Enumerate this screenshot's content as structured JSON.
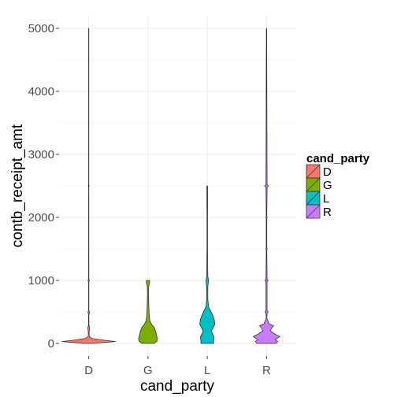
{
  "chart_data": {
    "type": "violin",
    "title": "",
    "xlabel": "cand_party",
    "ylabel": "contb_receipt_amt",
    "categories": [
      "D",
      "G",
      "L",
      "R"
    ],
    "ylim": [
      -200,
      5200
    ],
    "y_ticks": [
      0,
      1000,
      2000,
      3000,
      4000,
      5000
    ],
    "grid": true,
    "legend": {
      "title": "cand_party",
      "placement": "right",
      "entries": [
        "D",
        "G",
        "L",
        "R"
      ]
    },
    "colors": {
      "D": "#F8766D",
      "G": "#7CAE00",
      "L": "#00BFC4",
      "R": "#C77CFF"
    },
    "series": [
      {
        "name": "D",
        "min": 0,
        "max": 5000,
        "profile": [
          [
            0,
            0.2
          ],
          [
            15,
            0.55
          ],
          [
            30,
            1.0
          ],
          [
            50,
            0.6
          ],
          [
            80,
            0.12
          ],
          [
            110,
            0.02
          ],
          [
            150,
            0.015
          ],
          [
            200,
            0.02
          ],
          [
            250,
            0.035
          ],
          [
            280,
            0.01
          ],
          [
            450,
            0.005
          ],
          [
            500,
            0.03
          ],
          [
            520,
            0.005
          ],
          [
            980,
            0.005
          ],
          [
            1000,
            0.03
          ],
          [
            1020,
            0.005
          ],
          [
            2480,
            0.004
          ],
          [
            2500,
            0.012
          ],
          [
            2520,
            0.004
          ],
          [
            5000,
            0.004
          ]
        ]
      },
      {
        "name": "G",
        "min": 0,
        "max": 1000,
        "profile": [
          [
            0,
            0.22
          ],
          [
            30,
            0.33
          ],
          [
            80,
            0.35
          ],
          [
            130,
            0.32
          ],
          [
            200,
            0.28
          ],
          [
            260,
            0.22
          ],
          [
            300,
            0.14
          ],
          [
            360,
            0.07
          ],
          [
            450,
            0.045
          ],
          [
            600,
            0.03
          ],
          [
            800,
            0.02
          ],
          [
            900,
            0.025
          ],
          [
            960,
            0.06
          ],
          [
            1000,
            0.06
          ]
        ]
      },
      {
        "name": "L",
        "min": 0,
        "max": 2500,
        "profile": [
          [
            0,
            0.24
          ],
          [
            50,
            0.24
          ],
          [
            100,
            0.26
          ],
          [
            150,
            0.2
          ],
          [
            200,
            0.15
          ],
          [
            250,
            0.22
          ],
          [
            300,
            0.28
          ],
          [
            380,
            0.26
          ],
          [
            450,
            0.2
          ],
          [
            520,
            0.12
          ],
          [
            580,
            0.05
          ],
          [
            700,
            0.02
          ],
          [
            900,
            0.02
          ],
          [
            1000,
            0.05
          ],
          [
            1060,
            0.02
          ],
          [
            1500,
            0.01
          ],
          [
            2000,
            0.01
          ],
          [
            2450,
            0.015
          ],
          [
            2500,
            0.01
          ]
        ]
      },
      {
        "name": "R",
        "min": 0,
        "max": 5000,
        "profile": [
          [
            0,
            0.36
          ],
          [
            30,
            0.42
          ],
          [
            60,
            0.32
          ],
          [
            110,
            0.5
          ],
          [
            150,
            0.3
          ],
          [
            200,
            0.14
          ],
          [
            250,
            0.2
          ],
          [
            280,
            0.26
          ],
          [
            310,
            0.1
          ],
          [
            400,
            0.01
          ],
          [
            480,
            0.02
          ],
          [
            500,
            0.06
          ],
          [
            520,
            0.02
          ],
          [
            980,
            0.02
          ],
          [
            1000,
            0.06
          ],
          [
            1020,
            0.02
          ],
          [
            1480,
            0.01
          ],
          [
            1500,
            0.025
          ],
          [
            1520,
            0.01
          ],
          [
            1980,
            0.01
          ],
          [
            2000,
            0.025
          ],
          [
            2020,
            0.01
          ],
          [
            2480,
            0.02
          ],
          [
            2500,
            0.075
          ],
          [
            2520,
            0.02
          ],
          [
            5000,
            0.006
          ]
        ]
      }
    ]
  }
}
